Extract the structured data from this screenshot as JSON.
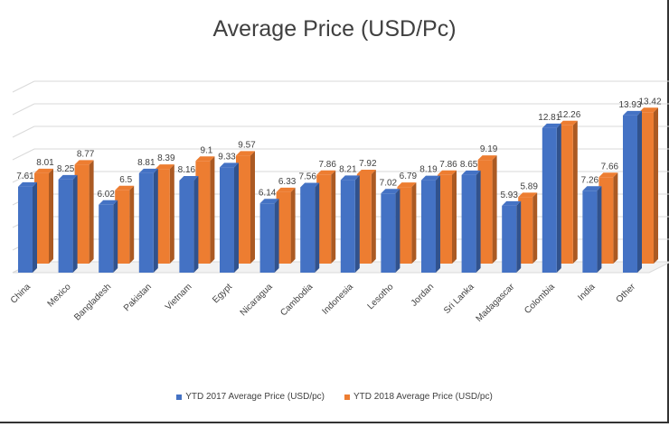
{
  "chart_data": {
    "type": "bar",
    "title": "Average Price (USD/Pc)",
    "xlabel": "",
    "ylabel": "",
    "ylim": [
      0,
      16
    ],
    "grid": true,
    "legend": "bottom",
    "categories": [
      "China",
      "Mexico",
      "Bangladesh",
      "Pakistan",
      "Vietnam",
      "Egypt",
      "Nicaragua",
      "Cambodia",
      "Indonesia",
      "Lesotho",
      "Jordan",
      "Sri Lanka",
      "Madagascar",
      "Colombia",
      "India",
      "Other"
    ],
    "series": [
      {
        "name": "YTD 2017 Average Price (USD/pc)",
        "color": "#4472C4",
        "values": [
          7.61,
          8.25,
          6.02,
          8.81,
          8.16,
          9.33,
          6.14,
          7.56,
          8.21,
          7.02,
          8.19,
          8.65,
          5.93,
          12.81,
          7.26,
          13.93
        ],
        "labels": [
          "7.61",
          "8.25",
          "6.02",
          "8.81",
          "8.16",
          "9.33",
          "6.14",
          "7.56",
          "8.21",
          "7.02",
          "8.19",
          "8.65",
          "5.93",
          "12.81",
          "7.26",
          "13.93"
        ]
      },
      {
        "name": "YTD 2018 Average Price (USD/pc)",
        "color": "#ED7D31",
        "values": [
          8.01,
          8.77,
          6.5,
          8.39,
          9.1,
          9.57,
          6.33,
          7.86,
          7.92,
          6.79,
          7.86,
          9.19,
          5.89,
          12.26,
          7.66,
          13.42
        ],
        "labels": [
          "8.01",
          "8.77",
          "6.5",
          "8.39",
          "9.1",
          "9.57",
          "6.33",
          "7.86",
          "7.92",
          "6.79",
          "7.86",
          "9.19",
          "5.89",
          "12.26",
          "7.66",
          "13.42"
        ]
      }
    ]
  }
}
